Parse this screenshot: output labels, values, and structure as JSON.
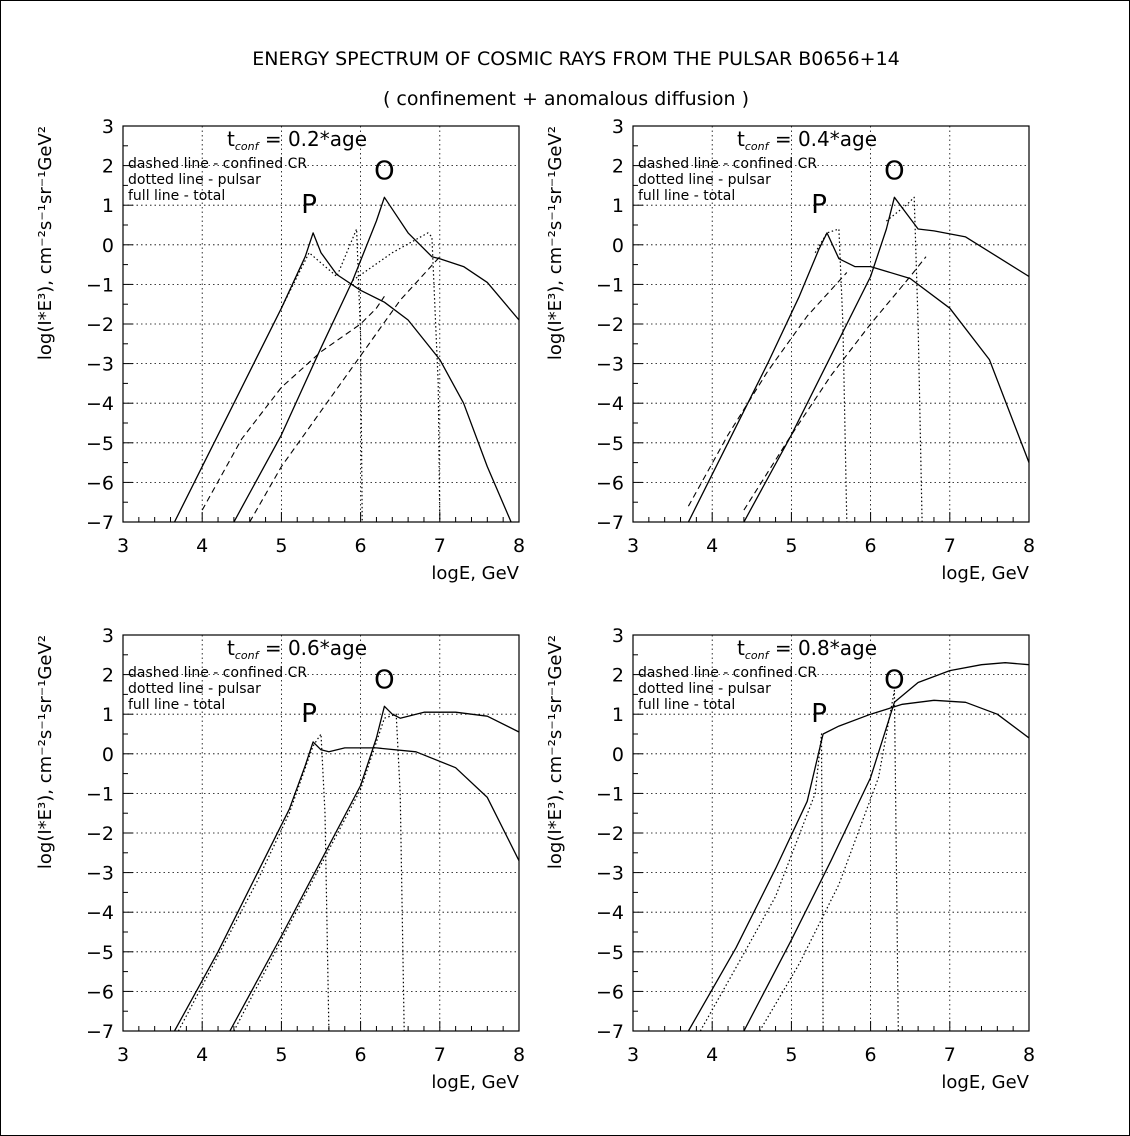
{
  "figure": {
    "title": "ENERGY SPECTRUM OF COSMIC RAYS FROM THE PULSAR B0656+14",
    "subtitle": "( confinement + anomalous diffusion )"
  },
  "chart_data": [
    {
      "type": "line",
      "panel_title": "t_conf = 0.2*age",
      "title_main": "t",
      "title_sub": "conf",
      "title_rest": " = 0.2*age",
      "xlabel": "logE, GeV",
      "ylabel": "log(I*E³), cm⁻²s⁻¹sr⁻¹GeV²",
      "xlim": [
        3,
        8
      ],
      "ylim": [
        -7,
        3
      ],
      "xticks": [
        "3",
        "4",
        "5",
        "6",
        "7",
        "8"
      ],
      "yticks": [
        "-7",
        "-6",
        "-5",
        "-4",
        "-3",
        "-2",
        "-1",
        "0",
        "1",
        "2",
        "3"
      ],
      "grid": true,
      "legend": [
        "dashed line - confined CR",
        "dotted line - pulsar",
        "full line - total"
      ],
      "annotations": [
        {
          "text": "P",
          "x": 5.35,
          "y": 0.8
        },
        {
          "text": "O",
          "x": 6.3,
          "y": 1.65
        }
      ],
      "series": [
        {
          "style": "solid",
          "x": [
            3.65,
            4.0,
            4.5,
            5.0,
            5.3,
            5.4,
            5.5,
            5.7,
            6.0,
            6.3,
            6.6,
            7.0,
            7.3,
            7.6,
            7.9
          ],
          "y": [
            -7,
            -5.6,
            -3.6,
            -1.6,
            -0.3,
            0.3,
            -0.2,
            -0.75,
            -1.15,
            -1.45,
            -1.9,
            -2.9,
            -4.0,
            -5.6,
            -7
          ]
        },
        {
          "style": "solid",
          "x": [
            4.4,
            5.0,
            5.5,
            5.9,
            6.2,
            6.3,
            6.4,
            6.6,
            6.9,
            7.0,
            7.3,
            7.6,
            8.0
          ],
          "y": [
            -7,
            -4.8,
            -2.6,
            -0.9,
            0.6,
            1.2,
            0.9,
            0.3,
            -0.3,
            -0.35,
            -0.55,
            -0.95,
            -1.9
          ]
        },
        {
          "style": "dashed",
          "x": [
            4.0,
            4.5,
            5.0,
            5.5,
            6.0,
            6.2,
            6.3
          ],
          "y": [
            -6.7,
            -4.9,
            -3.6,
            -2.7,
            -2.0,
            -1.6,
            -1.3
          ]
        },
        {
          "style": "dashed",
          "x": [
            4.6,
            5.0,
            5.5,
            6.0,
            6.5,
            7.0
          ],
          "y": [
            -7,
            -5.6,
            -4.2,
            -2.8,
            -1.4,
            -0.3
          ]
        },
        {
          "style": "dotted",
          "x": [
            5.0,
            5.35,
            5.7,
            5.95,
            6.0,
            6.02
          ],
          "y": [
            -1.6,
            -0.2,
            -0.8,
            0.4,
            -2.3,
            -7
          ]
        },
        {
          "style": "dotted",
          "x": [
            5.9,
            6.4,
            6.85,
            6.9,
            6.98,
            7.0
          ],
          "y": [
            -0.9,
            -0.2,
            0.3,
            0.2,
            -3.5,
            -7
          ]
        }
      ]
    },
    {
      "type": "line",
      "panel_title": "t_conf = 0.4*age",
      "title_main": "t",
      "title_sub": "conf",
      "title_rest": " = 0.4*age",
      "xlabel": "logE, GeV",
      "ylabel": "log(I*E³), cm⁻²s⁻¹sr⁻¹GeV²",
      "xlim": [
        3,
        8
      ],
      "ylim": [
        -7,
        3
      ],
      "xticks": [
        "3",
        "4",
        "5",
        "6",
        "7",
        "8"
      ],
      "yticks": [
        "-7",
        "-6",
        "-5",
        "-4",
        "-3",
        "-2",
        "-1",
        "0",
        "1",
        "2",
        "3"
      ],
      "grid": true,
      "legend": [
        "dashed line - confined CR",
        "dotted line - pulsar",
        "full line - total"
      ],
      "annotations": [
        {
          "text": "P",
          "x": 5.35,
          "y": 0.8
        },
        {
          "text": "O",
          "x": 6.3,
          "y": 1.65
        }
      ],
      "series": [
        {
          "style": "solid",
          "x": [
            3.7,
            4.2,
            4.7,
            5.1,
            5.35,
            5.45,
            5.6,
            5.8,
            6.0,
            6.5,
            7.0,
            7.5,
            8.0
          ],
          "y": [
            -7,
            -5.0,
            -3.0,
            -1.3,
            -0.1,
            0.3,
            -0.35,
            -0.55,
            -0.55,
            -0.85,
            -1.6,
            -2.9,
            -5.5
          ]
        },
        {
          "style": "solid",
          "x": [
            4.4,
            5.0,
            5.5,
            6.0,
            6.2,
            6.3,
            6.45,
            6.6,
            6.8,
            7.2,
            7.6,
            8.0
          ],
          "y": [
            -7,
            -4.8,
            -2.8,
            -0.8,
            0.4,
            1.2,
            0.8,
            0.4,
            0.35,
            0.2,
            -0.3,
            -0.8
          ]
        },
        {
          "style": "dashed",
          "x": [
            3.7,
            4.2,
            4.7,
            5.2,
            5.7
          ],
          "y": [
            -6.6,
            -4.8,
            -3.2,
            -1.8,
            -0.7
          ]
        },
        {
          "style": "dashed",
          "x": [
            4.4,
            5.0,
            5.5,
            6.0,
            6.5,
            6.7
          ],
          "y": [
            -6.7,
            -4.8,
            -3.3,
            -2.0,
            -0.8,
            -0.3
          ]
        },
        {
          "style": "dotted",
          "x": [
            5.3,
            5.45,
            5.6,
            5.65,
            5.7
          ],
          "y": [
            -0.2,
            0.3,
            0.4,
            -2.0,
            -7
          ]
        },
        {
          "style": "dotted",
          "x": [
            6.2,
            6.45,
            6.55,
            6.6,
            6.65
          ],
          "y": [
            0.6,
            1.0,
            1.2,
            -2.0,
            -7
          ]
        }
      ]
    },
    {
      "type": "line",
      "panel_title": "t_conf = 0.6*age",
      "title_main": "t",
      "title_sub": "conf",
      "title_rest": " = 0.6*age",
      "xlabel": "logE, GeV",
      "ylabel": "log(I*E³), cm⁻²s⁻¹sr⁻¹GeV²",
      "xlim": [
        3,
        8
      ],
      "ylim": [
        -7,
        3
      ],
      "xticks": [
        "3",
        "4",
        "5",
        "6",
        "7",
        "8"
      ],
      "yticks": [
        "-7",
        "-6",
        "-5",
        "-4",
        "-3",
        "-2",
        "-1",
        "0",
        "1",
        "2",
        "3"
      ],
      "grid": true,
      "legend": [
        "dashed line - confined CR",
        "dotted line - pulsar",
        "full line - total"
      ],
      "annotations": [
        {
          "text": "P",
          "x": 5.35,
          "y": 0.8
        },
        {
          "text": "O",
          "x": 6.3,
          "y": 1.65
        }
      ],
      "series": [
        {
          "style": "solid",
          "x": [
            3.65,
            4.2,
            4.7,
            5.1,
            5.3,
            5.4,
            5.5,
            5.6,
            5.8,
            6.2,
            6.7,
            7.2,
            7.6,
            8.0
          ],
          "y": [
            -7,
            -5.0,
            -3.0,
            -1.4,
            -0.3,
            0.3,
            0.1,
            0.05,
            0.15,
            0.15,
            0.05,
            -0.35,
            -1.1,
            -2.7
          ]
        },
        {
          "style": "solid",
          "x": [
            4.35,
            5.0,
            5.5,
            6.0,
            6.2,
            6.3,
            6.4,
            6.5,
            6.8,
            7.2,
            7.6,
            8.0
          ],
          "y": [
            -7,
            -4.6,
            -2.7,
            -0.8,
            0.4,
            1.2,
            1.0,
            0.9,
            1.05,
            1.05,
            0.95,
            0.55
          ]
        },
        {
          "style": "dotted",
          "x": [
            3.7,
            4.2,
            4.7,
            5.1,
            5.4,
            5.5,
            5.55,
            5.6
          ],
          "y": [
            -7,
            -5.1,
            -3.2,
            -1.5,
            0.2,
            0.5,
            -1.5,
            -7
          ]
        },
        {
          "style": "dotted",
          "x": [
            4.4,
            5.0,
            5.5,
            6.0,
            6.3,
            6.45,
            6.5,
            6.55
          ],
          "y": [
            -7,
            -4.7,
            -2.8,
            -0.9,
            0.9,
            1.0,
            -1.0,
            -7
          ]
        }
      ]
    },
    {
      "type": "line",
      "panel_title": "t_conf = 0.8*age",
      "title_main": "t",
      "title_sub": "conf",
      "title_rest": " = 0.8*age",
      "xlabel": "logE, GeV",
      "ylabel": "log(I*E³), cm⁻²s⁻¹sr⁻¹GeV²",
      "xlim": [
        3,
        8
      ],
      "ylim": [
        -7,
        3
      ],
      "xticks": [
        "3",
        "4",
        "5",
        "6",
        "7",
        "8"
      ],
      "yticks": [
        "-7",
        "-6",
        "-5",
        "-4",
        "-3",
        "-2",
        "-1",
        "0",
        "1",
        "2",
        "3"
      ],
      "grid": true,
      "legend": [
        "dashed line - confined CR",
        "dotted line - pulsar",
        "full line - total"
      ],
      "annotations": [
        {
          "text": "P",
          "x": 5.35,
          "y": 0.8
        },
        {
          "text": "O",
          "x": 6.3,
          "y": 1.65
        }
      ],
      "series": [
        {
          "style": "solid",
          "x": [
            3.7,
            4.3,
            4.8,
            5.2,
            5.4,
            5.6,
            6.0,
            6.4,
            6.8,
            7.2,
            7.6,
            8.0
          ],
          "y": [
            -7,
            -4.9,
            -2.9,
            -1.2,
            0.5,
            0.7,
            1.0,
            1.25,
            1.35,
            1.3,
            1.0,
            0.4
          ]
        },
        {
          "style": "solid",
          "x": [
            4.4,
            5.0,
            5.5,
            6.0,
            6.3,
            6.6,
            7.0,
            7.4,
            7.7,
            8.0
          ],
          "y": [
            -7,
            -4.7,
            -2.7,
            -0.6,
            1.3,
            1.8,
            2.1,
            2.25,
            2.3,
            2.25
          ]
        },
        {
          "style": "dotted",
          "x": [
            3.85,
            4.3,
            4.8,
            5.3,
            5.38,
            5.4
          ],
          "y": [
            -7,
            -5.4,
            -3.6,
            -1.0,
            0.5,
            -7
          ]
        },
        {
          "style": "dotted",
          "x": [
            4.6,
            5.1,
            5.6,
            6.1,
            6.3,
            6.35
          ],
          "y": [
            -7,
            -5.3,
            -3.3,
            -0.6,
            1.6,
            -7
          ]
        }
      ]
    }
  ]
}
